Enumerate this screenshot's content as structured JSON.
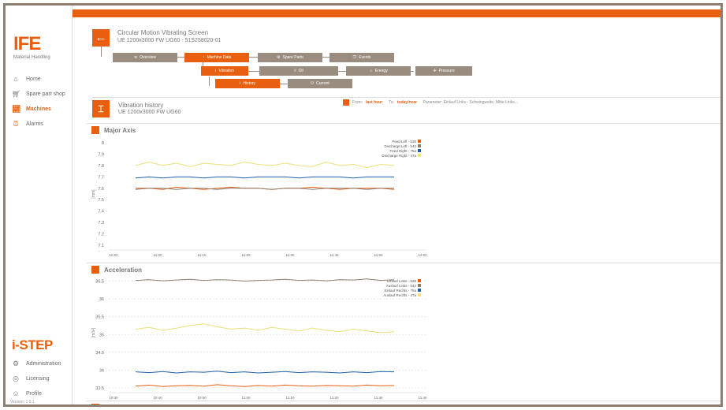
{
  "sidebar": {
    "logo_text": "IFE",
    "logo_sub": "Material Handling",
    "items": [
      {
        "label": "Home",
        "icon": "home-icon"
      },
      {
        "label": "Spare part shop",
        "icon": "cart-icon"
      },
      {
        "label": "Machines",
        "icon": "chart-icon"
      },
      {
        "label": "Alarms",
        "icon": "alarm-icon"
      }
    ],
    "brand": "i-STEP",
    "bottom_items": [
      {
        "label": "Administration",
        "icon": "gear-icon"
      },
      {
        "label": "Licensing",
        "icon": "license-icon"
      },
      {
        "label": "Profile",
        "icon": "user-icon"
      }
    ],
    "version": "Version: 1.0.1"
  },
  "header": {
    "title": "Circular Motion Vibrating Screen",
    "subtitle": "UE 1200x3000 FW UG60 - 51S258020-01",
    "nav": {
      "overview": "Overview",
      "machine_data": "Machine Data",
      "spare_parts": "Spare Parts",
      "events": "Events",
      "vibration": "Vibration",
      "oil": "Oil",
      "energy": "Energy",
      "pressure": "Pressure",
      "history": "History",
      "current": "Current"
    }
  },
  "subheader": {
    "title": "Vibration history",
    "subtitle": "UE 1200x3000 FW UG60",
    "from_label": "From:",
    "from_value": "last hour",
    "to_label": "To:",
    "to_value": "today/now",
    "parameter": "Parameter: Einlauf Links - Schwingweite, Mitte Links..."
  },
  "colors": {
    "accent": "#e8600f",
    "nav_grey": "#9a8d80"
  },
  "chart_data": [
    {
      "type": "line",
      "title": "Major Axis",
      "ylabel": "[mm]",
      "ylim": [
        7.1,
        8
      ],
      "yticks": [
        "8",
        "7.9",
        "7.8",
        "7.7",
        "7.6",
        "7.5",
        "7.4",
        "7.3",
        "7.2",
        "7.1"
      ],
      "xticks": [
        "10:00",
        "11:00",
        "11:10",
        "11:20",
        "11:30",
        "11:40",
        "11:50",
        "12:00"
      ],
      "series": [
        {
          "name": "Feed Left - b30",
          "color": "#e8600f",
          "values": [
            7.6,
            7.6,
            7.59,
            7.61,
            7.6,
            7.59,
            7.6,
            7.61,
            7.6,
            7.6,
            7.59,
            7.6,
            7.6,
            7.61,
            7.6,
            7.59,
            7.6,
            7.6,
            7.6,
            7.59
          ]
        },
        {
          "name": "Discharge Left - b42",
          "color": "#8c7f72",
          "values": [
            7.59,
            7.6,
            7.6,
            7.59,
            7.6,
            7.6,
            7.59,
            7.6,
            7.6,
            7.6,
            7.59,
            7.6,
            7.6,
            7.59,
            7.6,
            7.6,
            7.6,
            7.59,
            7.6,
            7.6
          ]
        },
        {
          "name": "Feed Right - 75a",
          "color": "#1a5fa8",
          "values": [
            7.69,
            7.7,
            7.69,
            7.7,
            7.7,
            7.69,
            7.7,
            7.7,
            7.69,
            7.7,
            7.7,
            7.7,
            7.69,
            7.7,
            7.7,
            7.7,
            7.69,
            7.7,
            7.7,
            7.7
          ]
        },
        {
          "name": "Discharge Right - 47a",
          "color": "#ebe07a",
          "values": [
            7.8,
            7.83,
            7.8,
            7.82,
            7.79,
            7.82,
            7.81,
            7.8,
            7.83,
            7.81,
            7.8,
            7.82,
            7.8,
            7.79,
            7.83,
            7.8,
            7.81,
            7.78,
            7.81,
            7.8
          ]
        }
      ]
    },
    {
      "type": "line",
      "title": "Acceleration",
      "ylabel": "[m/s²]",
      "ylim": [
        33.5,
        36.6
      ],
      "yticks": [
        "36.5",
        "36",
        "35.5",
        "35",
        "34.5",
        "34",
        "33.5"
      ],
      "xticks": [
        "10:30",
        "10:40",
        "10:50",
        "11:00",
        "11:10",
        "11:20",
        "11:30",
        "11:40"
      ],
      "series": [
        {
          "name": "Einlauf Links - b30",
          "color": "#e8600f",
          "values": [
            33.55,
            33.58,
            33.54,
            33.56,
            33.57,
            33.55,
            33.59,
            33.56,
            33.54,
            33.57,
            33.55,
            33.58,
            33.56,
            33.55,
            33.57,
            33.56,
            33.55,
            33.58,
            33.56,
            33.57
          ]
        },
        {
          "name": "Auslauf Links - b42",
          "color": "#8c7f72",
          "values": [
            36.52,
            36.54,
            36.51,
            36.53,
            36.55,
            36.52,
            36.54,
            36.53,
            36.5,
            36.52,
            36.53,
            36.55,
            36.52,
            36.53,
            36.51,
            36.54,
            36.53,
            36.56,
            36.52,
            36.54
          ]
        },
        {
          "name": "Einlauf Rechts - 75a",
          "color": "#1a5fa8",
          "values": [
            33.95,
            33.93,
            33.96,
            33.92,
            33.95,
            33.94,
            33.97,
            33.93,
            33.95,
            33.92,
            33.94,
            33.96,
            33.93,
            33.95,
            33.94,
            33.92,
            33.95,
            33.93,
            33.96,
            33.95
          ]
        },
        {
          "name": "Auslauf Rechts - 47a",
          "color": "#ebe07a",
          "values": [
            35.15,
            35.2,
            35.12,
            35.18,
            35.25,
            35.3,
            35.22,
            35.15,
            35.18,
            35.12,
            35.2,
            35.15,
            35.1,
            35.18,
            35.12,
            35.08,
            35.15,
            35.1,
            35.05,
            35.08
          ]
        }
      ]
    }
  ]
}
